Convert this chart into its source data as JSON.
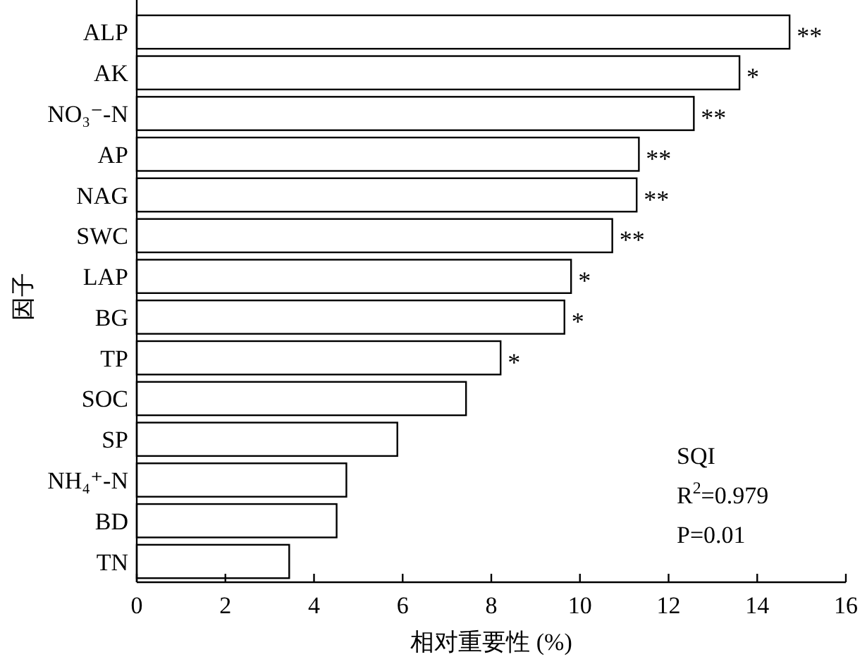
{
  "chart_data": {
    "type": "bar",
    "orientation": "horizontal",
    "xlabel": "相对重要性 (%)",
    "ylabel": "因子",
    "categories": [
      "ALP",
      "AK",
      "NO₃⁻-N",
      "AP",
      "NAG",
      "SWC",
      "LAP",
      "BG",
      "TP",
      "SOC",
      "SP",
      "NH₄⁺-N",
      "BD",
      "TN"
    ],
    "values": [
      14.73,
      13.6,
      12.57,
      11.33,
      11.28,
      10.73,
      9.8,
      9.65,
      8.21,
      7.43,
      5.88,
      4.73,
      4.51,
      3.44
    ],
    "value_labels": [
      "**",
      "*",
      "**",
      "**",
      "**",
      "**",
      "*",
      "*",
      "*",
      null,
      null,
      null,
      null,
      null
    ],
    "color": "#ffffff",
    "xlim": [
      0,
      16
    ],
    "xticks": [
      0,
      2,
      4,
      6,
      8,
      10,
      12,
      14,
      16
    ],
    "annotations": [
      "SQI",
      "R$^{2}$=0.979",
      "P=0.01"
    ],
    "grid": false
  }
}
